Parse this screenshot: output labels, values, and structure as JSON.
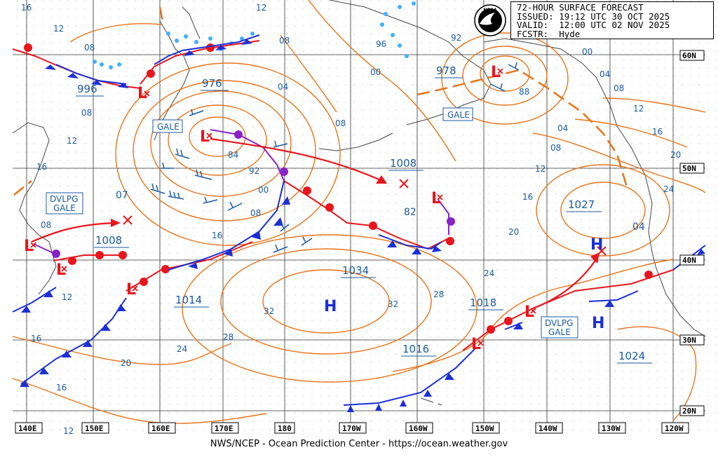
{
  "chart_title": "72-HOUR SURFACE FORECAST",
  "issued": "ISSUED: 19:12 UTC 30 OCT 2025",
  "valid": "VALID:  12:00 UTC 02 NOV 2025",
  "forecaster": "FCSTR:  Hyde",
  "footer": "NWS/NCEP - Ocean Prediction Center - https://ocean.weather.gov",
  "colors": {
    "isobar": "#e8731a",
    "warm_front": "#e8151c",
    "cold_front": "#1b2fd6",
    "occluded_front": "#8a22c8",
    "low": "#e8151c",
    "high": "#1b2fd6",
    "label": "#1a5aa0",
    "ice": "#3fb0ff"
  },
  "lat_labels": [
    "60N",
    "50N",
    "40N",
    "30N",
    "20N"
  ],
  "lon_labels": [
    "140E",
    "150E",
    "160E",
    "170E",
    "180",
    "170W",
    "160W",
    "150W",
    "140W",
    "130W",
    "120W"
  ],
  "pressure_centers": [
    {
      "id": "low-996",
      "type": "L",
      "value": "996"
    },
    {
      "id": "low-976",
      "type": "L",
      "value": "976"
    },
    {
      "id": "low-978",
      "type": "L",
      "value": "978"
    },
    {
      "id": "low-1008-mid",
      "type": "L",
      "value": "1008"
    },
    {
      "id": "low-1008-west",
      "type": "L",
      "value": "1008"
    },
    {
      "id": "low-1018",
      "type": "L",
      "value": "1018"
    },
    {
      "id": "low-1014",
      "type": "L",
      "value": "1014"
    },
    {
      "id": "low-1016",
      "type": "L",
      "value": "1016"
    },
    {
      "id": "high-1034",
      "type": "H",
      "value": "1034"
    },
    {
      "id": "high-1027",
      "type": "H",
      "value": "1027"
    },
    {
      "id": "high-1024",
      "type": "H",
      "value": "1024"
    }
  ],
  "warnings": [
    {
      "id": "gale-west",
      "text": "GALE"
    },
    {
      "id": "gale-alaska",
      "text": "GALE"
    },
    {
      "id": "dvlpg-gale-west",
      "line1": "DVLPG",
      "line2": "GALE"
    },
    {
      "id": "dvlpg-gale-east",
      "line1": "DVLPG",
      "line2": "GALE"
    }
  ],
  "isobar_labels": [
    "16",
    "12",
    "08",
    "12",
    "16",
    "08",
    "08",
    "04",
    "00",
    "96",
    "92",
    "00",
    "88",
    "84",
    "92",
    "00",
    "08",
    "16",
    "08",
    "04",
    "08",
    "12",
    "16",
    "20",
    "24",
    "04",
    "04",
    "08",
    "12",
    "16",
    "20",
    "24",
    "28",
    "32",
    "32",
    "28",
    "24",
    "20",
    "16",
    "12",
    "12",
    "07",
    "82",
    "00",
    "16"
  ]
}
